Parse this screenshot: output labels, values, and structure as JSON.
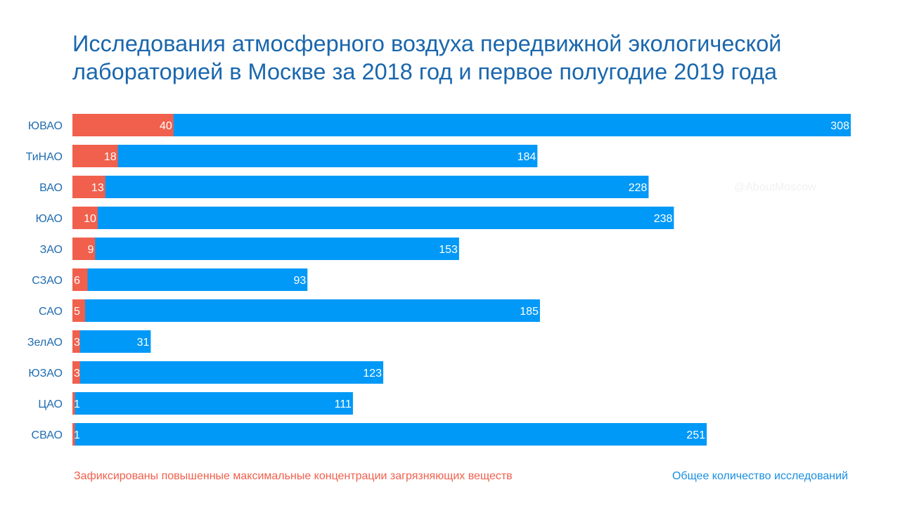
{
  "title": "Исследования атмосферного воздуха передвижной экологической лабораторией в Москве за 2018 год и первое полугодие 2019 года",
  "watermark": "@AboutMoscow",
  "colors": {
    "exceed": "#f0604d",
    "total": "#0099f7",
    "category_label": "#1f6cb0",
    "bar_label": "#ffffff"
  },
  "chart_data": {
    "type": "bar",
    "orientation": "horizontal",
    "stacked": "overlay",
    "categories": [
      "ЮВАО",
      "ТиНАО",
      "ВАО",
      "ЮАО",
      "ЗАО",
      "СЗАО",
      "САО",
      "ЗелАО",
      "ЮЗАО",
      "ЦАО",
      "СВАО"
    ],
    "series": [
      {
        "name": "Зафиксированы повышенные максимальные концентрации загрязняющих веществ",
        "color": "#f0604d",
        "values": [
          40,
          18,
          13,
          10,
          9,
          6,
          5,
          3,
          3,
          1,
          1
        ]
      },
      {
        "name": "Общее количество исследований",
        "color": "#0099f7",
        "values": [
          308,
          184,
          228,
          238,
          153,
          93,
          185,
          31,
          123,
          111,
          251
        ]
      }
    ],
    "xlim": [
      0,
      308
    ],
    "grid": false,
    "legend_position": "bottom"
  },
  "legend": {
    "exceed": "Зафиксированы повышенные максимальные концентрации загрязняющих веществ",
    "total": "Общее количество исследований"
  }
}
